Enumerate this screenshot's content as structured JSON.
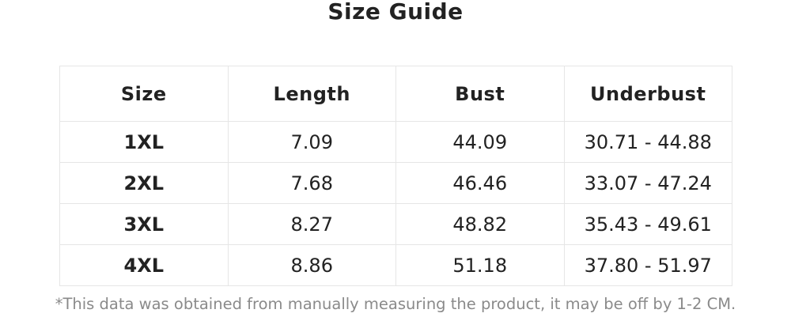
{
  "title": "Size Guide",
  "table": {
    "headers": [
      "Size",
      "Length",
      "Bust",
      "Underbust"
    ],
    "rows": [
      [
        "1XL",
        "7.09",
        "44.09",
        "30.71 - 44.88"
      ],
      [
        "2XL",
        "7.68",
        "46.46",
        "33.07 - 47.24"
      ],
      [
        "3XL",
        "8.27",
        "48.82",
        "35.43 - 49.61"
      ],
      [
        "4XL",
        "8.86",
        "51.18",
        "37.80 - 51.97"
      ]
    ]
  },
  "footnote": "*This data was obtained from manually measuring the product, it may be off by 1-2 CM."
}
